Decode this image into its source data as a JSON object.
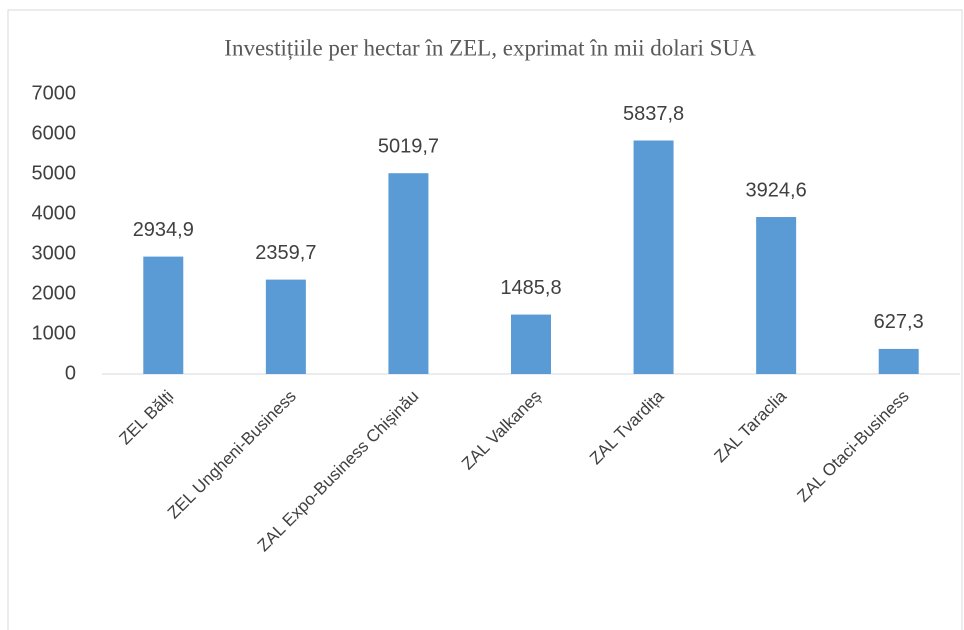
{
  "chart_data": {
    "type": "bar",
    "title": "Investițiile per hectar în ZEL, exprimat în mii dolari SUA",
    "categories": [
      "ZEL Bălți",
      "ZEL Ungheni-Business",
      "ZAL Expo-Business Chișinău",
      "ZAL Valkaneș",
      "ZAL Tvardița",
      "ZAL Taraclia",
      "ZAL Otaci-Business"
    ],
    "values": [
      2934.9,
      2359.7,
      5019.7,
      1485.8,
      5837.8,
      3924.6,
      627.3
    ],
    "value_labels": [
      "2934,9",
      "2359,7",
      "5019,7",
      "1485,8",
      "5837,8",
      "3924,6",
      "627,3"
    ],
    "color": "#5b9bd5",
    "ylim": [
      0,
      7000
    ],
    "yticks": [
      0,
      1000,
      2000,
      3000,
      4000,
      5000,
      6000,
      7000
    ],
    "grid": false
  }
}
